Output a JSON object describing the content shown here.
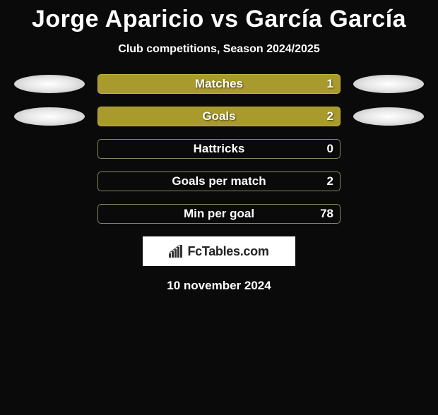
{
  "title": "Jorge Aparicio vs García García",
  "subtitle": "Club competitions, Season 2024/2025",
  "date": "10 november 2024",
  "logo_text": "FcTables.com",
  "colors": {
    "filled_bar": "#a89a2d",
    "filled_border": "#c2b43a",
    "empty_bar": "#0a0a0a",
    "empty_border": "#888863",
    "background": "#0a0a0a",
    "text": "#ffffff"
  },
  "stats": [
    {
      "label": "Matches",
      "value": "1",
      "filled": true,
      "show_ellipses": true
    },
    {
      "label": "Goals",
      "value": "2",
      "filled": true,
      "show_ellipses": true
    },
    {
      "label": "Hattricks",
      "value": "0",
      "filled": false,
      "show_ellipses": false
    },
    {
      "label": "Goals per match",
      "value": "2",
      "filled": false,
      "show_ellipses": false
    },
    {
      "label": "Min per goal",
      "value": "78",
      "filled": false,
      "show_ellipses": false
    }
  ]
}
